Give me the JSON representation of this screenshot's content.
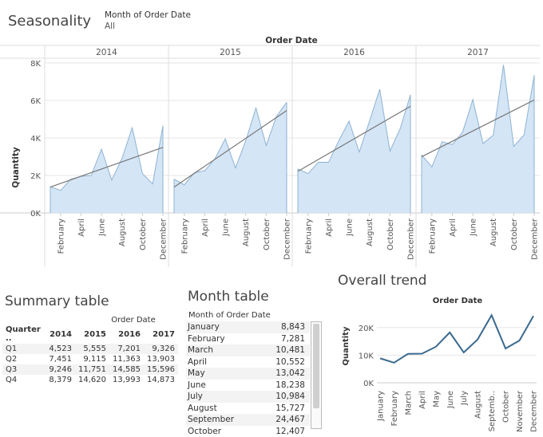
{
  "seasonality": {
    "title": "Seasonality",
    "filter_label": "Month of Order Date",
    "filter_value": "All",
    "header_label": "Order Date",
    "y_axis_label": "Quantity"
  },
  "summary": {
    "title": "Summary table",
    "header_label": "Order Date",
    "row_header": "Quarter ..",
    "columns": [
      "2014",
      "2015",
      "2016",
      "2017"
    ],
    "rows": [
      {
        "label": "Q1",
        "values": [
          "4,523",
          "5,555",
          "7,201",
          "9,326"
        ]
      },
      {
        "label": "Q2",
        "values": [
          "7,451",
          "9,115",
          "11,363",
          "13,903"
        ]
      },
      {
        "label": "Q3",
        "values": [
          "9,246",
          "11,751",
          "14,585",
          "15,596"
        ]
      },
      {
        "label": "Q4",
        "values": [
          "8,379",
          "14,620",
          "13,993",
          "14,873"
        ]
      }
    ]
  },
  "month_table": {
    "title": "Month table",
    "header_label": "Month of Order Date",
    "rows": [
      {
        "month": "January",
        "value": "8,843"
      },
      {
        "month": "February",
        "value": "7,281"
      },
      {
        "month": "March",
        "value": "10,481"
      },
      {
        "month": "April",
        "value": "10,552"
      },
      {
        "month": "May",
        "value": "13,042"
      },
      {
        "month": "June",
        "value": "18,238"
      },
      {
        "month": "July",
        "value": "10,984"
      },
      {
        "month": "August",
        "value": "15,727"
      },
      {
        "month": "September",
        "value": "24,467"
      },
      {
        "month": "October",
        "value": "12,407"
      }
    ]
  },
  "overall": {
    "title": "Overall trend",
    "header_label": "Order Date",
    "y_axis_label": "Quantity"
  },
  "colors": {
    "area_fill": "#d4e5f6",
    "area_line": "#8eb3d2",
    "trend_line": "#777777",
    "overall_line": "#3b6a8f",
    "grid": "#e6e6e6"
  },
  "chart_data": [
    {
      "type": "area",
      "panels": [
        "2014",
        "2015",
        "2016",
        "2017"
      ],
      "y_tick_labels": [
        "0K",
        "2K",
        "4K",
        "6K",
        "8K"
      ],
      "ylim": [
        0,
        8000
      ],
      "x_tick_labels": [
        "February",
        "April",
        "June",
        "August",
        "October",
        "December"
      ],
      "trend_lines": true,
      "series": [
        {
          "name": "2014",
          "values": [
            1400,
            1200,
            1800,
            1950,
            2000,
            3400,
            1750,
            2900,
            4550,
            2100,
            1550,
            4650
          ]
        },
        {
          "name": "2015",
          "values": [
            1800,
            1500,
            2150,
            2250,
            2900,
            3950,
            2400,
            3850,
            5600,
            3600,
            5150,
            5900
          ]
        },
        {
          "name": "2016",
          "values": [
            2350,
            2100,
            2700,
            2700,
            3850,
            4900,
            3250,
            4900,
            6600,
            3300,
            4500,
            6300
          ]
        },
        {
          "name": "2017",
          "values": [
            3100,
            2450,
            3800,
            3650,
            4300,
            6050,
            3700,
            4150,
            7900,
            3550,
            4150,
            7350
          ]
        }
      ]
    },
    {
      "type": "line",
      "x": [
        "January",
        "February",
        "March",
        "April",
        "May",
        "June",
        "July",
        "August",
        "Septemb..",
        "October",
        "November",
        "December"
      ],
      "values": [
        8843,
        7281,
        10481,
        10552,
        13042,
        18238,
        10984,
        15727,
        24467,
        12407,
        15300,
        24200
      ],
      "y_tick_labels": [
        "0K",
        "10K",
        "20K"
      ],
      "ylim": [
        0,
        26000
      ]
    }
  ]
}
